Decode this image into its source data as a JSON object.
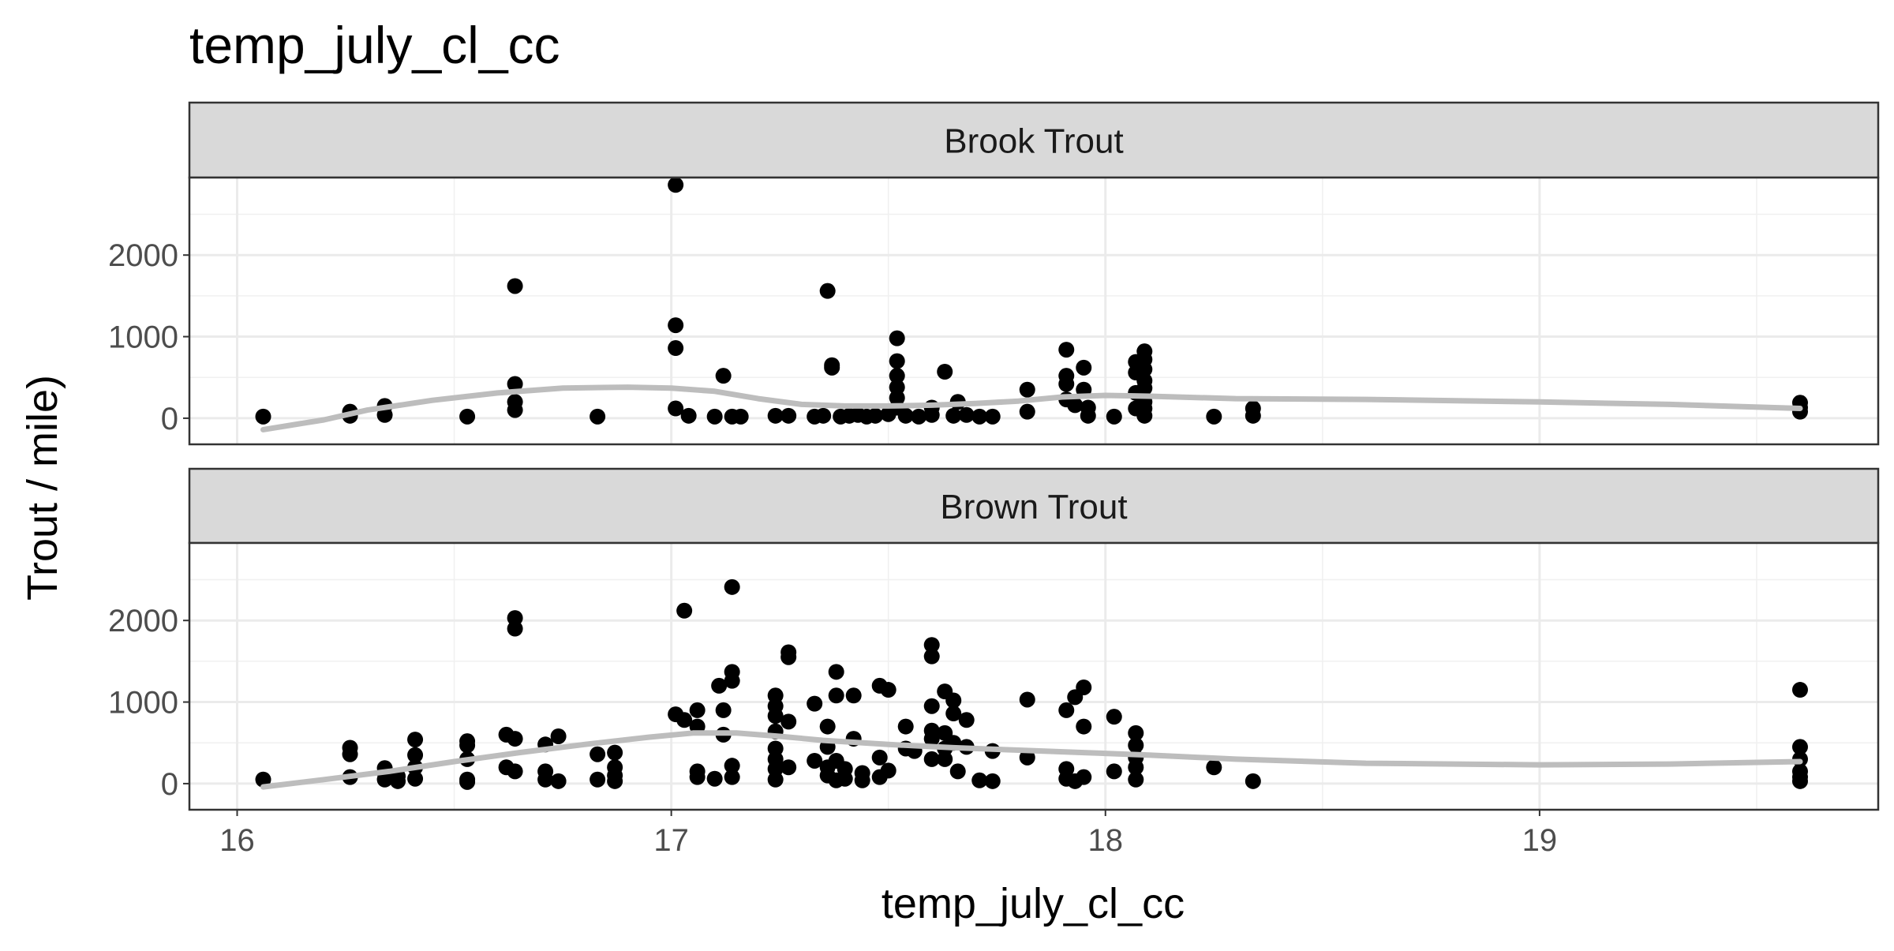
{
  "chart_data": {
    "type": "scatter",
    "title": "temp_july_cl_cc",
    "xlabel": "temp_july_cl_cc",
    "ylabel": "Trout / mile)",
    "xlim": [
      15.89,
      19.78
    ],
    "ylim": [
      -320,
      2950
    ],
    "x_ticks": [
      16,
      17,
      18,
      19
    ],
    "y_ticks": [
      0,
      1000,
      2000
    ],
    "grid": true,
    "facets": [
      {
        "label": "Brook Trout",
        "points": [
          [
            16.06,
            20
          ],
          [
            16.26,
            30
          ],
          [
            16.26,
            80
          ],
          [
            16.34,
            40
          ],
          [
            16.34,
            150
          ],
          [
            16.53,
            20
          ],
          [
            16.64,
            1620
          ],
          [
            16.64,
            420
          ],
          [
            16.64,
            200
          ],
          [
            16.64,
            100
          ],
          [
            16.83,
            20
          ],
          [
            17.01,
            2860
          ],
          [
            17.01,
            1140
          ],
          [
            17.01,
            860
          ],
          [
            17.01,
            120
          ],
          [
            17.04,
            30
          ],
          [
            17.1,
            20
          ],
          [
            17.12,
            520
          ],
          [
            17.14,
            20
          ],
          [
            17.16,
            20
          ],
          [
            17.24,
            30
          ],
          [
            17.27,
            30
          ],
          [
            17.33,
            20
          ],
          [
            17.35,
            30
          ],
          [
            17.36,
            1560
          ],
          [
            17.37,
            650
          ],
          [
            17.37,
            620
          ],
          [
            17.39,
            20
          ],
          [
            17.41,
            30
          ],
          [
            17.43,
            40
          ],
          [
            17.45,
            20
          ],
          [
            17.47,
            30
          ],
          [
            17.5,
            50
          ],
          [
            17.52,
            980
          ],
          [
            17.52,
            700
          ],
          [
            17.52,
            520
          ],
          [
            17.52,
            380
          ],
          [
            17.52,
            250
          ],
          [
            17.52,
            130
          ],
          [
            17.54,
            30
          ],
          [
            17.57,
            20
          ],
          [
            17.6,
            40
          ],
          [
            17.6,
            130
          ],
          [
            17.63,
            570
          ],
          [
            17.65,
            30
          ],
          [
            17.66,
            200
          ],
          [
            17.68,
            40
          ],
          [
            17.71,
            20
          ],
          [
            17.74,
            20
          ],
          [
            17.82,
            350
          ],
          [
            17.82,
            80
          ],
          [
            17.91,
            840
          ],
          [
            17.91,
            520
          ],
          [
            17.91,
            420
          ],
          [
            17.91,
            230
          ],
          [
            17.93,
            160
          ],
          [
            17.95,
            620
          ],
          [
            17.95,
            350
          ],
          [
            17.96,
            130
          ],
          [
            17.96,
            30
          ],
          [
            18.02,
            20
          ],
          [
            18.07,
            690
          ],
          [
            18.07,
            560
          ],
          [
            18.07,
            310
          ],
          [
            18.07,
            120
          ],
          [
            18.09,
            820
          ],
          [
            18.09,
            720
          ],
          [
            18.09,
            600
          ],
          [
            18.09,
            460
          ],
          [
            18.09,
            370
          ],
          [
            18.09,
            200
          ],
          [
            18.09,
            120
          ],
          [
            18.09,
            30
          ],
          [
            18.25,
            20
          ],
          [
            18.34,
            120
          ],
          [
            18.34,
            30
          ],
          [
            19.6,
            190
          ],
          [
            19.6,
            130
          ],
          [
            19.6,
            80
          ]
        ],
        "smooth": [
          [
            16.06,
            -140
          ],
          [
            16.2,
            -20
          ],
          [
            16.3,
            100
          ],
          [
            16.45,
            220
          ],
          [
            16.6,
            310
          ],
          [
            16.75,
            370
          ],
          [
            16.9,
            380
          ],
          [
            17.0,
            370
          ],
          [
            17.1,
            330
          ],
          [
            17.2,
            240
          ],
          [
            17.3,
            170
          ],
          [
            17.4,
            150
          ],
          [
            17.5,
            150
          ],
          [
            17.6,
            160
          ],
          [
            17.7,
            180
          ],
          [
            17.8,
            210
          ],
          [
            17.9,
            260
          ],
          [
            18.0,
            280
          ],
          [
            18.1,
            270
          ],
          [
            18.3,
            240
          ],
          [
            18.6,
            230
          ],
          [
            19.0,
            200
          ],
          [
            19.3,
            170
          ],
          [
            19.6,
            120
          ]
        ]
      },
      {
        "label": "Brown Trout",
        "points": [
          [
            16.06,
            50
          ],
          [
            16.26,
            440
          ],
          [
            16.26,
            360
          ],
          [
            16.26,
            80
          ],
          [
            16.34,
            190
          ],
          [
            16.34,
            130
          ],
          [
            16.34,
            50
          ],
          [
            16.37,
            30
          ],
          [
            16.37,
            90
          ],
          [
            16.41,
            540
          ],
          [
            16.41,
            350
          ],
          [
            16.41,
            200
          ],
          [
            16.41,
            60
          ],
          [
            16.53,
            520
          ],
          [
            16.53,
            470
          ],
          [
            16.53,
            300
          ],
          [
            16.53,
            50
          ],
          [
            16.53,
            20
          ],
          [
            16.62,
            600
          ],
          [
            16.62,
            200
          ],
          [
            16.64,
            2030
          ],
          [
            16.64,
            1900
          ],
          [
            16.64,
            550
          ],
          [
            16.64,
            150
          ],
          [
            16.71,
            480
          ],
          [
            16.71,
            150
          ],
          [
            16.71,
            50
          ],
          [
            16.74,
            580
          ],
          [
            16.74,
            30
          ],
          [
            16.83,
            360
          ],
          [
            16.83,
            50
          ],
          [
            16.87,
            380
          ],
          [
            16.87,
            200
          ],
          [
            16.87,
            100
          ],
          [
            16.87,
            30
          ],
          [
            17.01,
            850
          ],
          [
            17.03,
            2120
          ],
          [
            17.03,
            780
          ],
          [
            17.06,
            900
          ],
          [
            17.06,
            700
          ],
          [
            17.06,
            150
          ],
          [
            17.06,
            80
          ],
          [
            17.1,
            60
          ],
          [
            17.11,
            1200
          ],
          [
            17.12,
            900
          ],
          [
            17.12,
            600
          ],
          [
            17.14,
            2410
          ],
          [
            17.14,
            1370
          ],
          [
            17.14,
            1260
          ],
          [
            17.14,
            220
          ],
          [
            17.14,
            80
          ],
          [
            17.24,
            1080
          ],
          [
            17.24,
            950
          ],
          [
            17.24,
            830
          ],
          [
            17.24,
            640
          ],
          [
            17.24,
            430
          ],
          [
            17.24,
            300
          ],
          [
            17.24,
            180
          ],
          [
            17.24,
            50
          ],
          [
            17.27,
            1610
          ],
          [
            17.27,
            1550
          ],
          [
            17.27,
            760
          ],
          [
            17.27,
            200
          ],
          [
            17.33,
            980
          ],
          [
            17.33,
            280
          ],
          [
            17.36,
            700
          ],
          [
            17.36,
            450
          ],
          [
            17.36,
            200
          ],
          [
            17.36,
            100
          ],
          [
            17.38,
            1370
          ],
          [
            17.38,
            1080
          ],
          [
            17.38,
            280
          ],
          [
            17.38,
            40
          ],
          [
            17.4,
            180
          ],
          [
            17.4,
            60
          ],
          [
            17.42,
            1080
          ],
          [
            17.42,
            550
          ],
          [
            17.44,
            130
          ],
          [
            17.44,
            40
          ],
          [
            17.48,
            1200
          ],
          [
            17.48,
            320
          ],
          [
            17.48,
            80
          ],
          [
            17.5,
            1150
          ],
          [
            17.5,
            160
          ],
          [
            17.54,
            700
          ],
          [
            17.54,
            430
          ],
          [
            17.56,
            400
          ],
          [
            17.6,
            1700
          ],
          [
            17.6,
            1560
          ],
          [
            17.6,
            950
          ],
          [
            17.6,
            650
          ],
          [
            17.6,
            550
          ],
          [
            17.6,
            300
          ],
          [
            17.63,
            1130
          ],
          [
            17.63,
            620
          ],
          [
            17.63,
            430
          ],
          [
            17.63,
            300
          ],
          [
            17.65,
            1020
          ],
          [
            17.65,
            860
          ],
          [
            17.65,
            500
          ],
          [
            17.66,
            150
          ],
          [
            17.68,
            780
          ],
          [
            17.68,
            450
          ],
          [
            17.71,
            40
          ],
          [
            17.74,
            30
          ],
          [
            17.74,
            400
          ],
          [
            17.82,
            1030
          ],
          [
            17.82,
            320
          ],
          [
            17.91,
            900
          ],
          [
            17.91,
            180
          ],
          [
            17.91,
            60
          ],
          [
            17.93,
            1060
          ],
          [
            17.93,
            30
          ],
          [
            17.95,
            1180
          ],
          [
            17.95,
            700
          ],
          [
            17.95,
            80
          ],
          [
            18.02,
            820
          ],
          [
            18.02,
            150
          ],
          [
            18.07,
            620
          ],
          [
            18.07,
            470
          ],
          [
            18.07,
            320
          ],
          [
            18.07,
            200
          ],
          [
            18.07,
            50
          ],
          [
            18.25,
            200
          ],
          [
            18.34,
            30
          ],
          [
            19.6,
            1150
          ],
          [
            19.6,
            450
          ],
          [
            19.6,
            300
          ],
          [
            19.6,
            150
          ],
          [
            19.6,
            80
          ],
          [
            19.6,
            30
          ]
        ],
        "smooth": [
          [
            16.06,
            -40
          ],
          [
            16.2,
            50
          ],
          [
            16.35,
            150
          ],
          [
            16.5,
            270
          ],
          [
            16.65,
            380
          ],
          [
            16.8,
            480
          ],
          [
            16.95,
            570
          ],
          [
            17.05,
            620
          ],
          [
            17.15,
            620
          ],
          [
            17.25,
            580
          ],
          [
            17.35,
            530
          ],
          [
            17.5,
            480
          ],
          [
            17.65,
            440
          ],
          [
            17.8,
            410
          ],
          [
            17.95,
            380
          ],
          [
            18.1,
            350
          ],
          [
            18.3,
            300
          ],
          [
            18.6,
            250
          ],
          [
            19.0,
            230
          ],
          [
            19.3,
            240
          ],
          [
            19.6,
            270
          ]
        ]
      }
    ]
  }
}
